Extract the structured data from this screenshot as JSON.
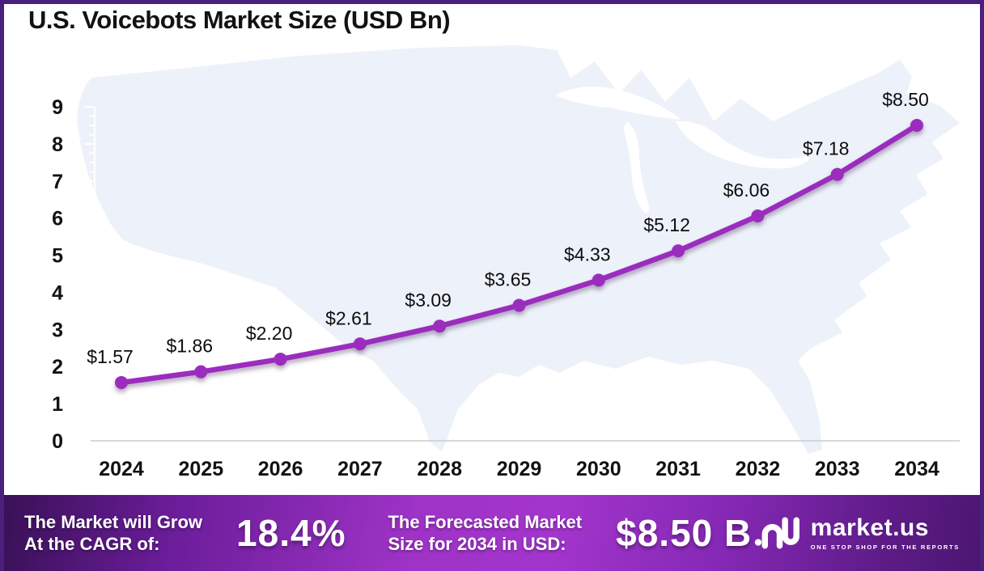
{
  "title": "U.S. Voicebots Market Size (USD Bn)",
  "chart_data": {
    "type": "line",
    "title": "U.S. Voicebots Market Size (USD Bn)",
    "x": [
      "2024",
      "2025",
      "2026",
      "2027",
      "2028",
      "2029",
      "2030",
      "2031",
      "2032",
      "2033",
      "2034"
    ],
    "values": [
      1.57,
      1.86,
      2.2,
      2.61,
      3.09,
      3.65,
      4.33,
      5.12,
      6.06,
      7.18,
      8.5
    ],
    "point_labels": [
      "$1.57",
      "$1.86",
      "$2.20",
      "$2.61",
      "$3.09",
      "$3.65",
      "$4.33",
      "$5.12",
      "$6.06",
      "$7.18",
      "$8.50"
    ],
    "ylim": [
      0,
      9
    ],
    "yticks": [
      0,
      1,
      2,
      3,
      4,
      5,
      6,
      7,
      8,
      9
    ],
    "grid": false,
    "legend": "none",
    "background": "us-map-silhouette",
    "line_color": "#9b2cbe"
  },
  "banner": {
    "cagr_label": "The Market will Grow\nAt the CAGR of:",
    "cagr_value": "18.4%",
    "forecast_label": "The Forecasted Market\nSize for 2034 in USD:",
    "forecast_value": "$8.50 B",
    "logo": {
      "name": "market.us",
      "tagline": "ONE STOP SHOP FOR THE REPORTS"
    }
  },
  "colors": {
    "accent": "#9b2cbe",
    "map_fill": "#edf1f9",
    "axis_line": "#cccccc",
    "text": "#121212",
    "page_border": "#4a1f7d",
    "banner_left": "#381054",
    "banner_mid": "#9e33c6",
    "banner_right": "#4b1670",
    "banner_text": "#ffffff"
  }
}
